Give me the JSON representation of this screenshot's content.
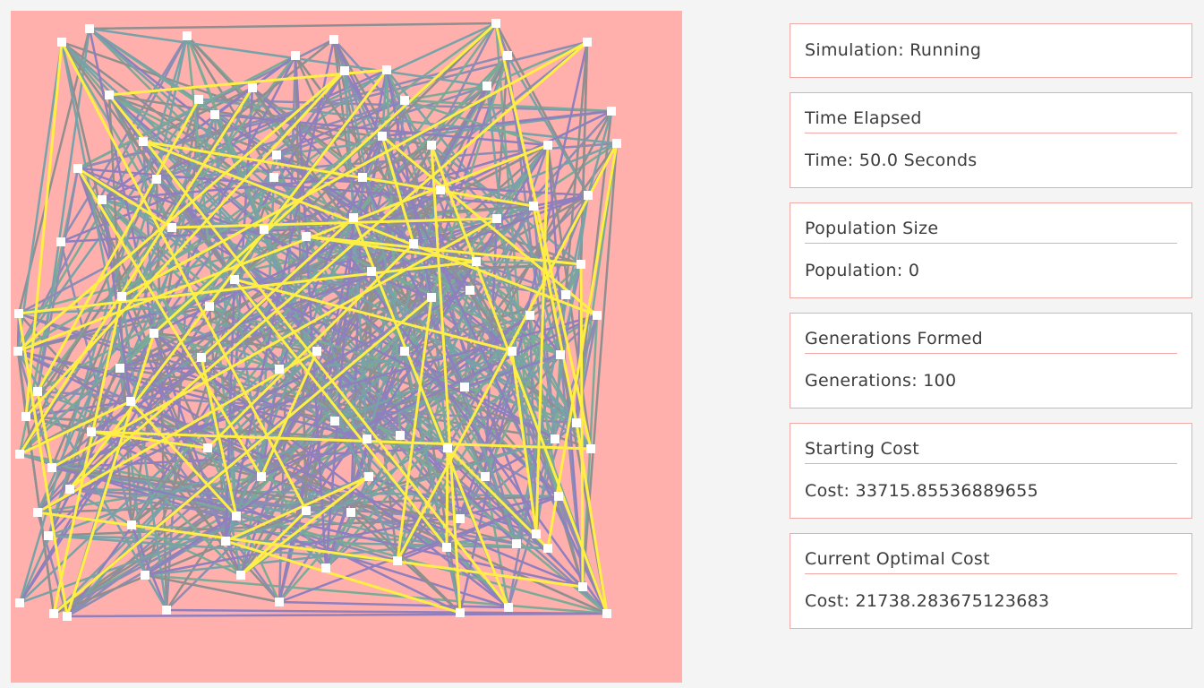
{
  "status": {
    "label": "Simulation: Running"
  },
  "cards": [
    {
      "title": "Time Elapsed",
      "value": "Time: 50.0 Seconds"
    },
    {
      "title": "Population Size",
      "value": "Population: 0"
    },
    {
      "title": "Generations Formed",
      "value": "Generations: 100"
    },
    {
      "title": "Starting Cost",
      "value": "Cost: 33715.85536889655"
    },
    {
      "title": "Current Optimal Cost",
      "value": "Cost: 21738.283675123683"
    }
  ],
  "colors": {
    "canvas_bg": "#ffb0ad",
    "best_route": "#ffee44",
    "route_colors": [
      "#8c8cb4",
      "#7aab97",
      "#8f8f8f",
      "#77a2a8",
      "#8f7fbf"
    ],
    "city": "#ffffff"
  }
}
